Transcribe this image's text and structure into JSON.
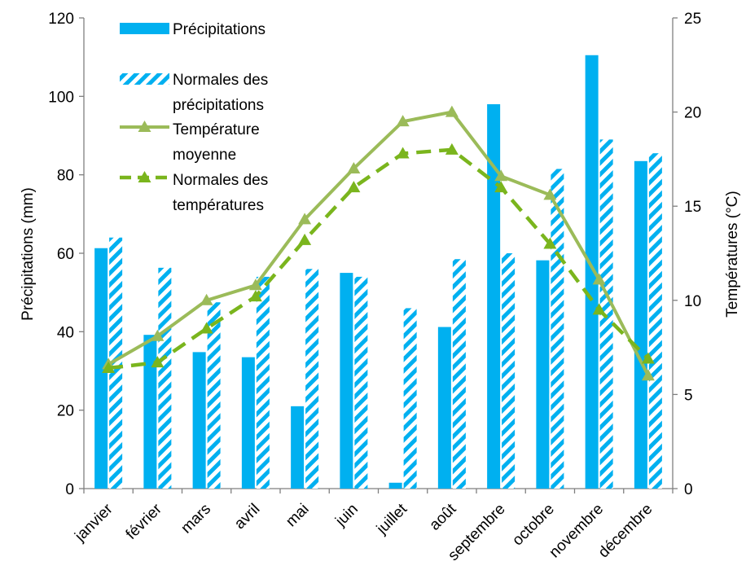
{
  "chart_data": {
    "type": "bar",
    "categories": [
      "janvier",
      "février",
      "mars",
      "avril",
      "mai",
      "juin",
      "juillet",
      "août",
      "septembre",
      "octobre",
      "novembre",
      "décembre"
    ],
    "series": [
      {
        "name": "Précipitations",
        "type": "bar",
        "axis": "left",
        "style": "solid",
        "values": [
          61.3,
          39.2,
          34.8,
          33.5,
          21.0,
          55.0,
          1.5,
          41.2,
          98.0,
          58.2,
          110.5,
          83.5
        ]
      },
      {
        "name": "Normales des précipitations",
        "type": "bar",
        "axis": "left",
        "style": "hatched",
        "values": [
          64.0,
          56.3,
          47.5,
          54.0,
          56.0,
          54.0,
          46.0,
          58.5,
          60.0,
          81.5,
          89.0,
          85.5
        ]
      },
      {
        "name": "Température moyenne",
        "type": "line",
        "axis": "right",
        "style": "solid",
        "marker": "triangle",
        "values": [
          6.6,
          8.1,
          10.0,
          10.8,
          14.3,
          17.0,
          19.5,
          20.0,
          16.6,
          15.6,
          11.1,
          6.0
        ]
      },
      {
        "name": "Normales des températures",
        "type": "line",
        "axis": "right",
        "style": "dashed",
        "marker": "triangle",
        "values": [
          6.4,
          6.7,
          8.5,
          10.2,
          13.2,
          16.0,
          17.8,
          18.0,
          16.0,
          13.0,
          9.5,
          6.9
        ]
      }
    ],
    "legend_labels": [
      [
        "Précipitations"
      ],
      [
        "Normales des",
        "précipitations"
      ],
      [
        "Température",
        "moyenne"
      ],
      [
        "Normales des",
        "températures"
      ]
    ],
    "ylabel": "Précipitations (mm)",
    "y2label": "Températures  (°C)",
    "ylim": [
      0,
      120
    ],
    "y2lim": [
      0,
      25
    ],
    "yticks": [
      0,
      20,
      40,
      60,
      80,
      100,
      120
    ],
    "y2ticks": [
      0,
      5,
      10,
      15,
      20,
      25
    ],
    "grid": false,
    "legend_position": "top-left",
    "colors": {
      "bar": "#00B0F0",
      "line_actual": "#9BBB59",
      "line_normal": "#7AB51D"
    }
  }
}
